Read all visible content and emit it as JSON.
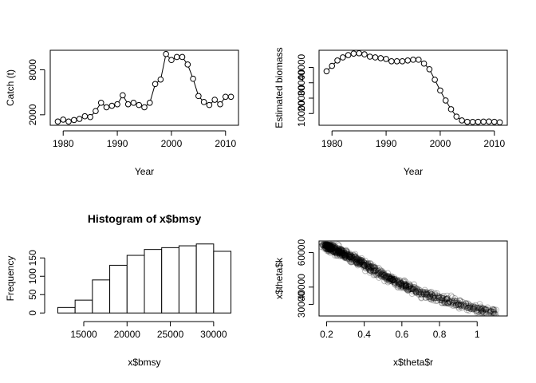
{
  "chart_data": [
    {
      "type": "line",
      "panel": "top-left",
      "title": "",
      "xlabel": "Year",
      "ylabel": "Catch (t)",
      "markers": "open-circle",
      "x": [
        1979,
        1980,
        1981,
        1982,
        1983,
        1984,
        1985,
        1986,
        1987,
        1988,
        1989,
        1990,
        1991,
        1992,
        1993,
        1994,
        1995,
        1996,
        1997,
        1998,
        1999,
        2000,
        2001,
        2002,
        2003,
        2004,
        2005,
        2006,
        2007,
        2008,
        2009,
        2010,
        2011
      ],
      "y": [
        1100,
        1350,
        1100,
        1300,
        1450,
        1800,
        1700,
        2500,
        3600,
        3000,
        3200,
        3400,
        4600,
        3400,
        3600,
        3300,
        3000,
        3600,
        6100,
        6700,
        10100,
        9300,
        9700,
        9700,
        8700,
        6800,
        4500,
        3700,
        3300,
        4000,
        3400,
        4400,
        4400
      ],
      "xticks": [
        1980,
        1990,
        2000,
        2010
      ],
      "yticks": [
        2000,
        8000
      ],
      "xlim": [
        1979,
        2011
      ],
      "ylim": [
        1000,
        10200
      ]
    },
    {
      "type": "line",
      "panel": "top-right",
      "title": "",
      "xlabel": "Year",
      "ylabel": "Estimated biomass",
      "markers": "open-circle",
      "x": [
        1979,
        1980,
        1981,
        1982,
        1983,
        1984,
        1985,
        1986,
        1987,
        1988,
        1989,
        1990,
        1991,
        1992,
        1993,
        1994,
        1995,
        1996,
        1997,
        1998,
        1999,
        2000,
        2001,
        2002,
        2003,
        2004,
        2005,
        2006,
        2007,
        2008,
        2009,
        2010,
        2011
      ],
      "y": [
        37500,
        41000,
        44500,
        46500,
        48000,
        49000,
        49200,
        48500,
        47000,
        46500,
        46000,
        45500,
        44000,
        44000,
        44000,
        44500,
        45000,
        45000,
        42500,
        38800,
        32000,
        25000,
        18500,
        12800,
        8000,
        5500,
        4600,
        4500,
        4600,
        4700,
        4800,
        4600,
        4300
      ],
      "xticks": [
        1980,
        1990,
        2000,
        2010
      ],
      "yticks": [
        10000,
        20000,
        30000,
        40000
      ],
      "xlim": [
        1979,
        2011
      ],
      "ylim": [
        4300,
        49200
      ]
    },
    {
      "type": "bar",
      "panel": "bottom-left",
      "title": "Histogram of x$bmsy",
      "xlabel": "x$bmsy",
      "ylabel": "Frequency",
      "bin_edges": [
        12000,
        14000,
        16000,
        18000,
        20000,
        22000,
        24000,
        26000,
        28000,
        30000,
        32000
      ],
      "values": [
        15,
        35,
        90,
        130,
        157,
        173,
        178,
        183,
        188,
        168
      ],
      "xticks": [
        15000,
        20000,
        25000,
        30000
      ],
      "yticks": [
        0,
        50,
        100,
        150
      ],
      "xlim": [
        12000,
        32000
      ],
      "ylim": [
        0,
        188
      ]
    },
    {
      "type": "scatter",
      "panel": "bottom-right",
      "title": "",
      "xlabel": "x$theta$r",
      "ylabel": "x$theta$k",
      "markers": "open-circle-translucent",
      "trend": {
        "k_at_r": [
          [
            0.2,
            64000
          ],
          [
            0.3,
            59000
          ],
          [
            0.4,
            53000
          ],
          [
            0.5,
            47000
          ],
          [
            0.6,
            41500
          ],
          [
            0.7,
            37000
          ],
          [
            0.8,
            33500
          ],
          [
            0.9,
            30500
          ],
          [
            1.0,
            27500
          ],
          [
            1.1,
            25000
          ]
        ]
      },
      "xticks": [
        0.2,
        0.4,
        0.6,
        0.8,
        1.0
      ],
      "yticks": [
        30000,
        40000,
        60000
      ],
      "xlim": [
        0.2,
        1.12
      ],
      "ylim": [
        25000,
        65000
      ]
    }
  ]
}
